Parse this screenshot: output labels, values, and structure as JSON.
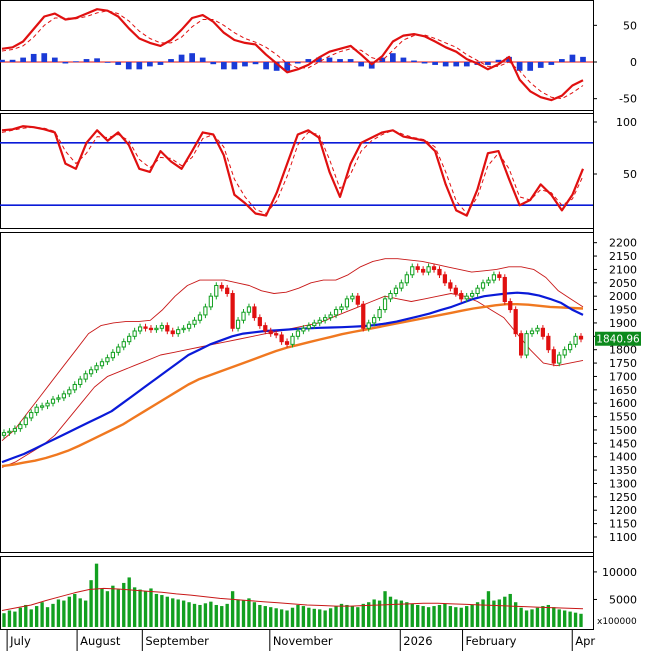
{
  "chart_data": [
    {
      "panel": "macd",
      "type": "line",
      "ytick_labels": [
        "50",
        "0",
        "-50"
      ],
      "ytick_values": [
        50,
        0,
        -50
      ],
      "ylim": [
        -60,
        75
      ],
      "colors": {
        "macd": "#e01010",
        "signal": "#e01010",
        "histogram_pos": "#1a3ad6",
        "histogram_neg": "#1a3ad6",
        "zero": "#e01010"
      },
      "series": [
        {
          "role": "macd",
          "values": [
            18,
            20,
            28,
            45,
            62,
            66,
            58,
            60,
            66,
            72,
            70,
            62,
            46,
            32,
            26,
            22,
            30,
            44,
            60,
            64,
            55,
            40,
            30,
            26,
            24,
            10,
            -2,
            -14,
            -10,
            -4,
            6,
            14,
            18,
            22,
            10,
            -3,
            8,
            28,
            36,
            38,
            35,
            28,
            20,
            14,
            4,
            -2,
            -10,
            -3,
            7,
            -24,
            -40,
            -48,
            -52,
            -46,
            -32,
            -25
          ]
        },
        {
          "role": "signal",
          "values": [
            15,
            17,
            22,
            34,
            50,
            60,
            60,
            59,
            62,
            67,
            70,
            66,
            56,
            42,
            32,
            26,
            26,
            34,
            48,
            58,
            58,
            50,
            40,
            32,
            27,
            20,
            10,
            -2,
            -8,
            -8,
            0,
            8,
            14,
            18,
            16,
            6,
            2,
            16,
            30,
            36,
            37,
            32,
            26,
            20,
            10,
            2,
            -6,
            -6,
            0,
            -12,
            -28,
            -40,
            -48,
            -50,
            -42,
            -32
          ]
        },
        {
          "role": "histogram",
          "values": [
            3,
            3,
            6,
            11,
            12,
            6,
            -2,
            1,
            4,
            5,
            0,
            -4,
            -10,
            -10,
            -6,
            -4,
            4,
            10,
            12,
            6,
            -3,
            -10,
            -10,
            -6,
            -3,
            -10,
            -12,
            -12,
            -2,
            4,
            6,
            6,
            4,
            4,
            -6,
            -9,
            6,
            12,
            6,
            2,
            -2,
            -4,
            -6,
            -6,
            -6,
            -4,
            -4,
            3,
            7,
            -12,
            -12,
            -8,
            -4,
            4,
            10,
            7
          ]
        }
      ]
    },
    {
      "panel": "stochastic",
      "type": "line",
      "ytick_labels": [
        "100",
        "50"
      ],
      "ytick_values": [
        100,
        50
      ],
      "ylim": [
        0,
        100
      ],
      "reference_lines": [
        80,
        20
      ],
      "colors": {
        "k": "#e01010",
        "d": "#e01010",
        "reference": "#0a1ad8"
      },
      "series": [
        {
          "role": "k",
          "values": [
            92,
            93,
            96,
            95,
            93,
            90,
            60,
            55,
            80,
            92,
            82,
            90,
            78,
            55,
            52,
            72,
            62,
            55,
            72,
            90,
            88,
            68,
            30,
            22,
            12,
            10,
            32,
            60,
            88,
            92,
            85,
            52,
            28,
            60,
            80,
            85,
            90,
            92,
            86,
            84,
            82,
            72,
            40,
            15,
            10,
            35,
            70,
            72,
            45,
            20,
            25,
            40,
            30,
            15,
            30,
            55
          ]
        },
        {
          "role": "d",
          "values": [
            90,
            92,
            94,
            95,
            94,
            91,
            72,
            60,
            70,
            86,
            85,
            88,
            82,
            64,
            56,
            66,
            65,
            58,
            66,
            84,
            88,
            76,
            45,
            28,
            16,
            12,
            24,
            48,
            78,
            90,
            88,
            64,
            36,
            50,
            72,
            82,
            88,
            92,
            88,
            85,
            83,
            76,
            52,
            24,
            12,
            28,
            58,
            70,
            55,
            28,
            25,
            35,
            32,
            20,
            26,
            48
          ]
        }
      ]
    },
    {
      "panel": "price",
      "type": "candlestick",
      "last_price_label": "1840.96",
      "ytick_labels": [
        "2200",
        "2150",
        "2100",
        "2050",
        "2000",
        "1950",
        "1900",
        "1850",
        "1800",
        "1750",
        "1700",
        "1650",
        "1600",
        "1550",
        "1500",
        "1450",
        "1400",
        "1350",
        "1300",
        "1250",
        "1200",
        "1150",
        "1100"
      ],
      "ytick_values": [
        2200,
        2150,
        2100,
        2050,
        2000,
        1950,
        1900,
        1850,
        1800,
        1750,
        1700,
        1650,
        1600,
        1550,
        1500,
        1450,
        1400,
        1350,
        1300,
        1250,
        1200,
        1150,
        1100
      ],
      "ylim": [
        1070,
        2210
      ],
      "colors": {
        "up": "#12a020",
        "down": "#e01010",
        "ma_blue": "#0a1ad8",
        "ma_orange": "#f07820",
        "bollinger": "#c81818",
        "label_bg": "#0c8a1c",
        "label_text": "#ffffff"
      },
      "close": [
        1490,
        1495,
        1505,
        1520,
        1545,
        1565,
        1585,
        1590,
        1600,
        1615,
        1620,
        1635,
        1650,
        1670,
        1690,
        1710,
        1725,
        1740,
        1755,
        1770,
        1790,
        1810,
        1830,
        1850,
        1870,
        1885,
        1880,
        1875,
        1880,
        1890,
        1870,
        1860,
        1875,
        1880,
        1895,
        1910,
        1930,
        1960,
        2000,
        2040,
        2030,
        2010,
        1880,
        1910,
        1940,
        1960,
        1920,
        1890,
        1870,
        1860,
        1855,
        1830,
        1820,
        1850,
        1870,
        1880,
        1890,
        1900,
        1910,
        1920,
        1930,
        1950,
        1960,
        1990,
        2000,
        1970,
        1880,
        1900,
        1920,
        1950,
        1990,
        2010,
        2030,
        2050,
        2080,
        2110,
        2100,
        2090,
        2110,
        2100,
        2080,
        2050,
        2030,
        2010,
        1990,
        2000,
        2010,
        2030,
        2050,
        2060,
        2080,
        2070,
        1980,
        1950,
        1860,
        1780,
        1860,
        1870,
        1880,
        1850,
        1800,
        1750,
        1780,
        1800,
        1820,
        1850,
        1840
      ],
      "moving_average_blue": [
        1380,
        1395,
        1410,
        1430,
        1450,
        1470,
        1490,
        1510,
        1530,
        1550,
        1570,
        1600,
        1630,
        1660,
        1690,
        1720,
        1750,
        1780,
        1800,
        1820,
        1835,
        1850,
        1860,
        1865,
        1870,
        1872,
        1875,
        1878,
        1880,
        1882,
        1883,
        1884,
        1886,
        1888,
        1892,
        1898,
        1905,
        1915,
        1925,
        1935,
        1948,
        1960,
        1975,
        1990,
        2000,
        2005,
        2010,
        2013,
        2010,
        2002,
        1990,
        1975,
        1950,
        1930
      ],
      "moving_average_orange": [
        1365,
        1370,
        1378,
        1385,
        1395,
        1408,
        1422,
        1440,
        1460,
        1480,
        1500,
        1520,
        1545,
        1570,
        1595,
        1620,
        1645,
        1670,
        1690,
        1705,
        1720,
        1735,
        1750,
        1765,
        1780,
        1795,
        1808,
        1818,
        1828,
        1838,
        1848,
        1858,
        1866,
        1874,
        1882,
        1890,
        1898,
        1906,
        1914,
        1922,
        1930,
        1938,
        1946,
        1954,
        1960,
        1966,
        1970,
        1970,
        1968,
        1964,
        1960,
        1958,
        1956,
        1954
      ],
      "bollinger_upper": [
        1460,
        1500,
        1560,
        1620,
        1680,
        1740,
        1800,
        1860,
        1890,
        1900,
        1905,
        1905,
        1910,
        1950,
        2000,
        2040,
        2060,
        2060,
        2060,
        2050,
        2040,
        2020,
        2010,
        2015,
        2030,
        2050,
        2060,
        2060,
        2080,
        2110,
        2130,
        2140,
        2140,
        2135,
        2130,
        2120,
        2110,
        2100,
        2090,
        2095,
        2100,
        2110,
        2110,
        2100,
        2070,
        2020,
        1990,
        1960
      ],
      "bollinger_lower": [
        1360,
        1380,
        1410,
        1440,
        1480,
        1540,
        1600,
        1660,
        1700,
        1720,
        1740,
        1760,
        1780,
        1790,
        1800,
        1810,
        1820,
        1830,
        1840,
        1850,
        1860,
        1870,
        1880,
        1890,
        1900,
        1920,
        1940,
        1960,
        1980,
        2000,
        1990,
        1980,
        1990,
        2000,
        2010,
        2000,
        1980,
        1950,
        1920,
        1860,
        1800,
        1750,
        1740,
        1750,
        1760
      ],
      "x_category_labels": [
        "July",
        "August",
        "September",
        "November",
        "2026",
        "February",
        "Apr"
      ]
    },
    {
      "panel": "volume",
      "type": "bar",
      "ytick_labels": [
        "10000",
        "5000"
      ],
      "ytick_values": [
        10000,
        5000
      ],
      "unit_label": "x100000",
      "ylim": [
        0,
        11800
      ],
      "colors": {
        "bars": "#12a020",
        "average": "#c81818"
      },
      "values": [
        2500,
        3000,
        2800,
        3500,
        4000,
        3200,
        3800,
        4500,
        3600,
        4200,
        5000,
        4800,
        5500,
        6000,
        5200,
        4800,
        8500,
        11500,
        7000,
        6500,
        7500,
        6800,
        8000,
        9000,
        7200,
        6800,
        6500,
        7000,
        6000,
        5800,
        5500,
        5200,
        5000,
        4800,
        4500,
        4200,
        4000,
        4300,
        4600,
        4000,
        3800,
        4200,
        6500,
        5000,
        4800,
        5200,
        4500,
        4000,
        3800,
        3600,
        3400,
        3200,
        3000,
        3500,
        4000,
        3800,
        3500,
        3300,
        3200,
        3000,
        3400,
        3800,
        4200,
        4000,
        3800,
        3600,
        4200,
        4500,
        5000,
        4800,
        6500,
        5500,
        5000,
        4800,
        4500,
        4200,
        4000,
        3800,
        3600,
        3800,
        4000,
        4200,
        3800,
        3600,
        3500,
        3800,
        4000,
        4500,
        5000,
        6500,
        4800,
        5000,
        5500,
        6000,
        4500,
        3500,
        3000,
        3200,
        3500,
        3800,
        4000,
        3600,
        3200,
        3000,
        2800,
        2600,
        2400
      ],
      "average": [
        3000,
        3500,
        4000,
        4800,
        5500,
        6200,
        6800,
        7000,
        6900,
        6700,
        6500,
        6300,
        6000,
        5800,
        5500,
        5200,
        5000,
        4800,
        4600,
        4400,
        4200,
        4000,
        3900,
        3800,
        3800,
        3900,
        4000,
        4100,
        4200,
        4300,
        4300,
        4200,
        4100,
        4000,
        3900,
        3800,
        3700,
        3600,
        3500,
        3400,
        3300
      ]
    }
  ]
}
